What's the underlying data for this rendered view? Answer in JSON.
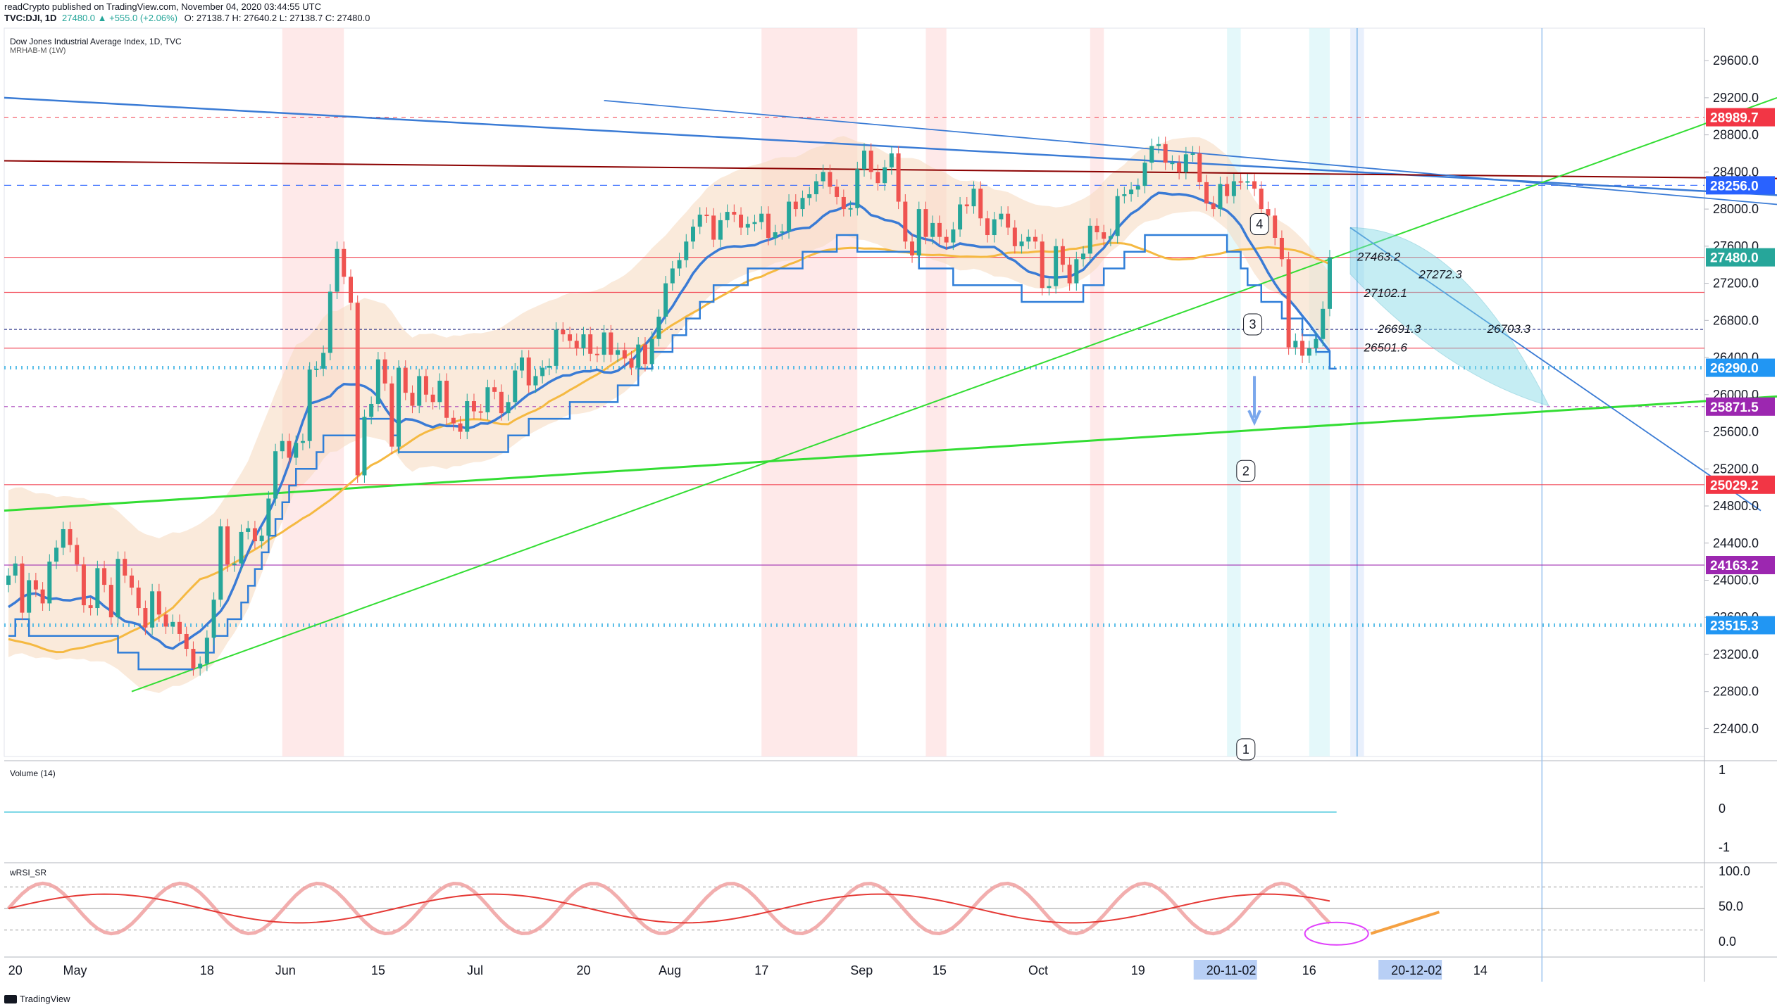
{
  "header": {
    "line1": "readCrypto published on TradingView.com, November 04, 2020 03:44:55 UTC",
    "symbol": "TVC:DJI, 1D",
    "change": "27480.0 ▲ +555.0 (+2.06%)",
    "ohlc": "O: 27138.7 H: 27640.2 L: 27138.7 C: 27480.0"
  },
  "panels": {
    "main_title": "Dow Jones Industrial Average Index, 1D, TVC",
    "main_indicator": "MRHAB-M (1W)",
    "volume_title": "Volume (14)",
    "rsi_title": "wRSI_SR"
  },
  "footer": {
    "brand": "TradingView"
  },
  "colors": {
    "up": "#26a69a",
    "down": "#ef5350",
    "green_line": "#33dd33",
    "blue_line": "#3a7bd5",
    "maroon_line": "#8b0000",
    "orange_ma": "#f5b942",
    "purple_ma": "#a0528c",
    "band_fill": "#f7dcc3",
    "cyan": "#7fd8e6",
    "label_red": "#f23645",
    "label_blue": "#2962ff",
    "label_purple": "#9c27b0"
  },
  "chart_data": {
    "type": "candlestick",
    "ylim": [
      22100,
      29950
    ],
    "y_ticks": [
      22400,
      22800,
      23200,
      23600,
      24000,
      24400,
      24800,
      25200,
      25600,
      26000,
      26400,
      26800,
      27200,
      27600,
      28000,
      28400,
      28800,
      29200,
      29600
    ],
    "y_tick_labels": [
      "22400.0",
      "22800.0",
      "23200.0",
      "23600.0",
      "24000.0",
      "24400.0",
      "24800.0",
      "25200.0",
      "25600.0",
      "26000.0",
      "26400.0",
      "26800.0",
      "27200.0",
      "27600.0",
      "28000.0",
      "28400.0",
      "28800.0",
      "29200.0",
      "29600.0"
    ],
    "x_labels": [
      {
        "text": "20",
        "i": 1
      },
      {
        "text": "May",
        "i": 9
      },
      {
        "text": "18",
        "i": 29
      },
      {
        "text": "Jun",
        "i": 40
      },
      {
        "text": "15",
        "i": 54
      },
      {
        "text": "Jul",
        "i": 68
      },
      {
        "text": "20",
        "i": 84
      },
      {
        "text": "Aug",
        "i": 96
      },
      {
        "text": "17",
        "i": 110
      },
      {
        "text": "Sep",
        "i": 124
      },
      {
        "text": "15",
        "i": 136
      },
      {
        "text": "Oct",
        "i": 150
      },
      {
        "text": "19",
        "i": 165
      },
      {
        "text": "20-11-02",
        "i": 176,
        "highlight": true
      },
      {
        "text": "16",
        "i": 190
      },
      {
        "text": "20-12-02",
        "i": 203,
        "highlight": true
      },
      {
        "text": "14",
        "i": 215
      }
    ],
    "price_labels": [
      {
        "value": "28989.7",
        "y": 28990,
        "color": "#f23645"
      },
      {
        "value": "28256.0",
        "y": 28256,
        "color": "#2962ff"
      },
      {
        "value": "27480.0",
        "y": 27480,
        "color": "#26a69a"
      },
      {
        "value": "26290.0",
        "y": 26290,
        "color": "#2196f3"
      },
      {
        "value": "25871.5",
        "y": 25871,
        "color": "#9c27b0"
      },
      {
        "value": "25029.2",
        "y": 25029,
        "color": "#f23645"
      },
      {
        "value": "24163.2",
        "y": 24163,
        "color": "#9c27b0"
      },
      {
        "value": "23515.3",
        "y": 23515,
        "color": "#2196f3"
      }
    ],
    "annotations": [
      {
        "text": "27463.2",
        "x": 197,
        "y": 27490
      },
      {
        "text": "27272.3",
        "x": 206,
        "y": 27300
      },
      {
        "text": "27102.1",
        "x": 198,
        "y": 27100
      },
      {
        "text": "26691.3",
        "x": 200,
        "y": 26710
      },
      {
        "text": "26703.3",
        "x": 216,
        "y": 26710
      },
      {
        "text": "26501.6",
        "x": 198,
        "y": 26510
      }
    ],
    "callouts": [
      {
        "text": "1",
        "i": 172,
        "y": 22200
      },
      {
        "text": "2",
        "i": 172,
        "y": 25200
      },
      {
        "text": "3",
        "i": 173,
        "y": 26780
      },
      {
        "text": "4",
        "i": 174,
        "y": 27860
      }
    ],
    "closes": [
      24050,
      24180,
      23650,
      24000,
      23900,
      23750,
      24200,
      24350,
      24550,
      24380,
      24170,
      23730,
      23700,
      24130,
      23950,
      23600,
      24230,
      24050,
      23920,
      23700,
      23490,
      23880,
      23630,
      23500,
      23550,
      23420,
      23260,
      23050,
      23100,
      23380,
      23790,
      24580,
      24170,
      24180,
      24520,
      24560,
      24420,
      24480,
      24880,
      25390,
      25500,
      25320,
      25480,
      25500,
      26270,
      26280,
      26450,
      27110,
      27570,
      27270,
      26990,
      25130,
      25760,
      25900,
      26380,
      26120,
      25440,
      26290,
      26020,
      25880,
      26200,
      26000,
      25920,
      26150,
      25750,
      25690,
      25600,
      25930,
      25820,
      25810,
      26080,
      26030,
      25800,
      25920,
      26260,
      26400,
      26100,
      26200,
      26290,
      26310,
      26700,
      26650,
      26580,
      26500,
      26650,
      26440,
      26430,
      26670,
      26430,
      26480,
      26390,
      26290,
      26540,
      26330,
      26600,
      26840,
      27200,
      27360,
      27450,
      27650,
      27810,
      27940,
      27930,
      27670,
      27880,
      27970,
      27940,
      27800,
      27840,
      27860,
      27950,
      27690,
      27750,
      27760,
      28080,
      28000,
      28120,
      28160,
      28300,
      28400,
      28240,
      28130,
      28000,
      28010,
      28430,
      28630,
      28400,
      28280,
      28450,
      28600,
      28080,
      27650,
      27500,
      28000,
      27700,
      27850,
      27700,
      27640,
      27780,
      28050,
      28030,
      28220,
      27900,
      27720,
      27890,
      27950,
      27800,
      27600,
      27650,
      27700,
      27650,
      27150,
      27170,
      27600,
      27400,
      27200,
      27460,
      27520,
      27820,
      27750,
      27680,
      27710,
      28140,
      28160,
      28210,
      28250,
      28500,
      28680,
      28700,
      28500,
      28500,
      28400,
      28590,
      28600,
      28290,
      28060,
      28000,
      28270,
      28140,
      28300,
      28290,
      28300,
      28220,
      28000,
      27930,
      27690,
      27460,
      26510,
      26580,
      26420,
      26500,
      26600,
      26925,
      27480
    ],
    "resistance_levels": [
      28990,
      28256,
      27480,
      27102,
      26703,
      26501,
      26290,
      25871,
      25029,
      24163,
      23515
    ],
    "volume_ticks": [
      "1",
      "0",
      "-1"
    ],
    "rsi_ticks": [
      "100.0",
      "50.0",
      "0.0"
    ]
  }
}
